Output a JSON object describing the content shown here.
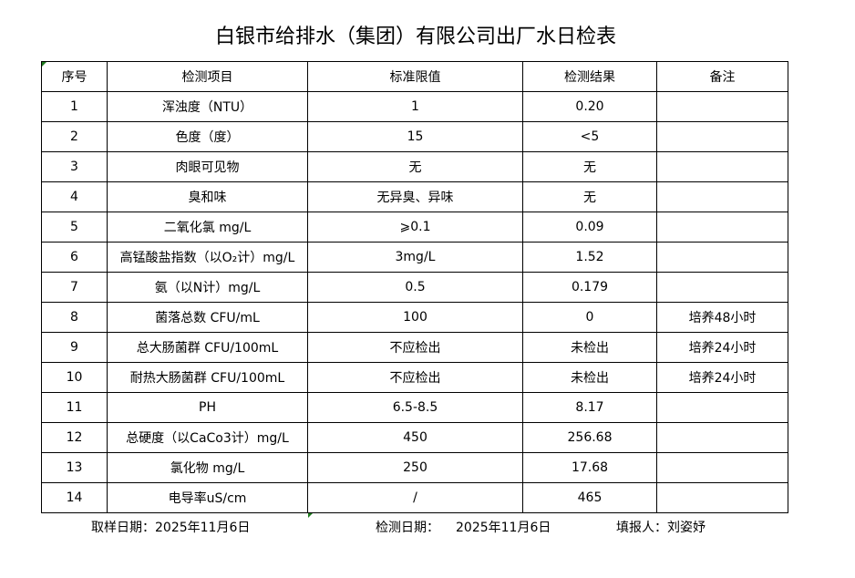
{
  "title": "白银市给排水（集团）有限公司出厂水日检表",
  "table": {
    "headers": [
      "序号",
      "检测项目",
      "标准限值",
      "检测结果",
      "备注"
    ],
    "rows": [
      [
        "1",
        "浑浊度（NTU）",
        "1",
        "0.20",
        ""
      ],
      [
        "2",
        "色度（度）",
        "15",
        "<5",
        ""
      ],
      [
        "3",
        "肉眼可见物",
        "无",
        "无",
        ""
      ],
      [
        "4",
        "臭和味",
        "无异臭、异味",
        "无",
        ""
      ],
      [
        "5",
        "二氧化氯 mg/L",
        "⩾0.1",
        "0.09",
        ""
      ],
      [
        "6",
        "高锰酸盐指数（以O₂计）mg/L",
        "3mg/L",
        "1.52",
        ""
      ],
      [
        "7",
        "氨（以N计）mg/L",
        "0.5",
        "0.179",
        ""
      ],
      [
        "8",
        "菌落总数 CFU/mL",
        "100",
        "0",
        "培养48小时"
      ],
      [
        "9",
        "总大肠菌群 CFU/100mL",
        "不应检出",
        "未检出",
        "培养24小时"
      ],
      [
        "10",
        "耐热大肠菌群 CFU/100mL",
        "不应检出",
        "未检出",
        "培养24小时"
      ],
      [
        "11",
        "PH",
        "6.5-8.5",
        "8.17",
        ""
      ],
      [
        "12",
        "总硬度（以CaCo3计）mg/L",
        "450",
        "256.68",
        ""
      ],
      [
        "13",
        "氯化物 mg/L",
        "250",
        "17.68",
        ""
      ],
      [
        "14",
        "电导率uS/cm",
        "/",
        "465",
        ""
      ]
    ]
  },
  "footer": {
    "sampling_date": "取样日期：2025年11月6日",
    "test_date_label": "检测日期：",
    "test_date": "2025年11月6日",
    "reporter": "填报人：刘姿妤"
  },
  "colors": {
    "cell_marker": "#1e7b1e"
  }
}
